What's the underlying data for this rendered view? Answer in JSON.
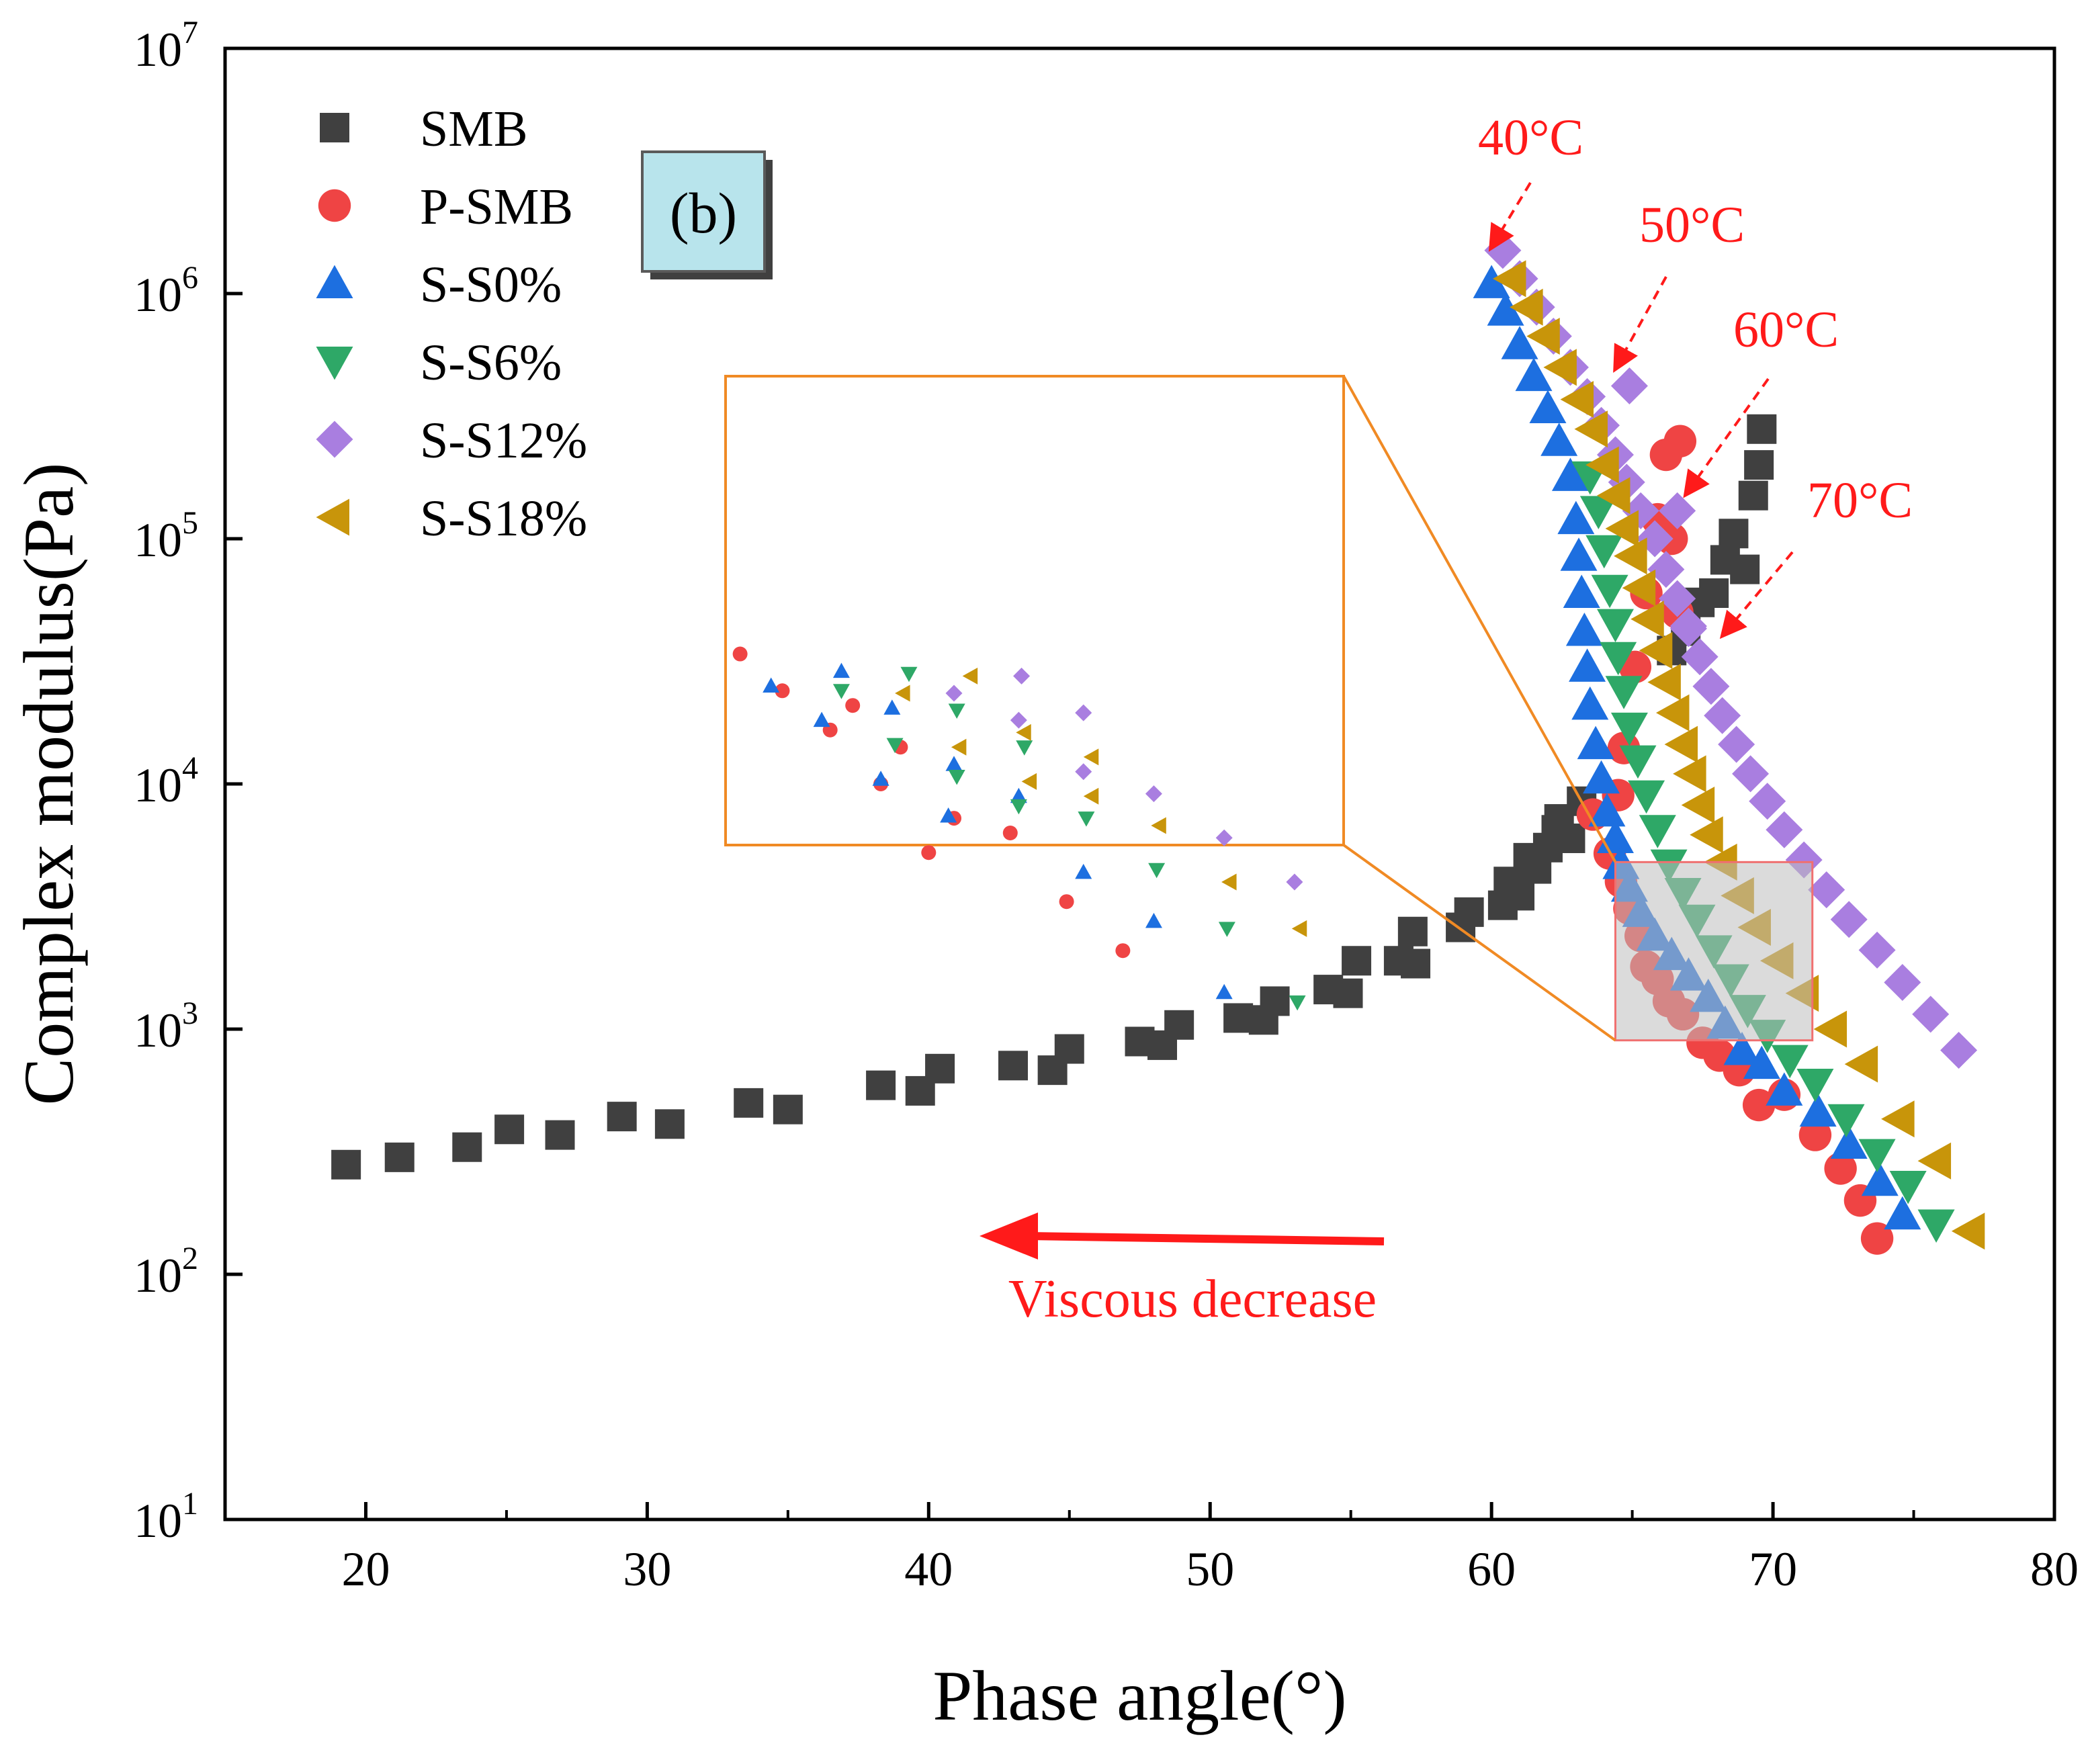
{
  "chart_data": {
    "type": "scatter",
    "title": "",
    "xlabel": "Phase angle(°)",
    "ylabel": "Complex modulus(Pa)",
    "xlim": [
      15,
      80
    ],
    "ylim": [
      10,
      10000000
    ],
    "yscale": "log",
    "x_ticks": [
      20,
      30,
      40,
      50,
      60,
      70,
      80
    ],
    "y_ticks": [
      {
        "value": 10,
        "base": "10",
        "exp": "1"
      },
      {
        "value": 100,
        "base": "10",
        "exp": "2"
      },
      {
        "value": 1000,
        "base": "10",
        "exp": "3"
      },
      {
        "value": 10000,
        "base": "10",
        "exp": "4"
      },
      {
        "value": 100000,
        "base": "10",
        "exp": "5"
      },
      {
        "value": 1000000,
        "base": "10",
        "exp": "6"
      },
      {
        "value": 10000000,
        "base": "10",
        "exp": "7"
      }
    ],
    "panel_label": "(b)",
    "legend_position": "top-left",
    "series": [
      {
        "name": "SMB",
        "marker": "square",
        "color": "#404040",
        "x": [
          19.3,
          21.2,
          23.6,
          25.1,
          26.9,
          29.1,
          30.8,
          33.6,
          35.0,
          38.3,
          39.7,
          40.4,
          43.0,
          44.4,
          45.0,
          47.5,
          48.3,
          48.9,
          51.0,
          51.9,
          52.3,
          54.2,
          54.9,
          55.2,
          56.7,
          57.3,
          57.2,
          58.9,
          59.2,
          60.4,
          60.6,
          61.0,
          61.3,
          61.6,
          62.0,
          62.3,
          62.4,
          62.8,
          63.2,
          66.4,
          66.9,
          67.4,
          67.9,
          68.3,
          68.6,
          69.0,
          69.3,
          69.5,
          69.6
        ],
        "y": [
          280,
          300,
          330,
          390,
          370,
          440,
          410,
          500,
          470,
          590,
          560,
          690,
          710,
          680,
          830,
          890,
          860,
          1040,
          1110,
          1090,
          1300,
          1450,
          1400,
          1900,
          1900,
          1850,
          2500,
          2600,
          3000,
          3200,
          4000,
          3500,
          5000,
          4500,
          5500,
          6500,
          7200,
          6000,
          8500,
          35000,
          42000,
          55000,
          60000,
          82000,
          105000,
          75000,
          150000,
          200000,
          280000
        ]
      },
      {
        "name": "P-SMB",
        "marker": "circle",
        "color": "#ef4444",
        "x": [
          63.6,
          64.2,
          64.6,
          64.9,
          65.3,
          65.5,
          65.9,
          66.3,
          66.8,
          67.5,
          68.1,
          68.8,
          69.5,
          70.4,
          71.5,
          72.4,
          73.1,
          73.7,
          64.5,
          64.7,
          65.1,
          65.5,
          65.9,
          66.2,
          66.4,
          66.6,
          66.7
        ],
        "y": [
          7500,
          5200,
          4000,
          3100,
          2400,
          1800,
          1600,
          1300,
          1150,
          880,
          780,
          680,
          490,
          540,
          370,
          270,
          200,
          140,
          9000,
          14000,
          30000,
          60000,
          120000,
          220000,
          100000,
          50000,
          250000
        ]
      },
      {
        "name": "S-S0%",
        "marker": "triangle-up",
        "color": "#1d6fe0",
        "x": [
          60.0,
          60.5,
          61.0,
          61.5,
          62.0,
          62.4,
          62.8,
          63.0,
          63.1,
          63.2,
          63.3,
          63.4,
          63.5,
          63.7,
          63.9,
          64.1,
          64.4,
          64.6,
          64.9,
          65.3,
          65.8,
          66.4,
          67.0,
          67.7,
          68.3,
          68.9,
          69.6,
          70.4,
          71.6,
          72.7,
          73.8,
          74.6
        ],
        "y": [
          1100000,
          850000,
          620000,
          460000,
          340000,
          250000,
          180000,
          120000,
          85000,
          60000,
          42000,
          30000,
          21000,
          14500,
          10500,
          7700,
          6000,
          4700,
          3800,
          3000,
          2400,
          2000,
          1650,
          1350,
          1050,
          820,
          720,
          560,
          460,
          340,
          240,
          175
        ]
      },
      {
        "name": "S-S6%",
        "marker": "triangle-down",
        "color": "#2ea867",
        "x": [
          63.5,
          63.8,
          64.0,
          64.2,
          64.4,
          64.5,
          64.7,
          64.9,
          65.2,
          65.5,
          65.9,
          66.3,
          66.8,
          67.3,
          67.9,
          68.5,
          69.1,
          69.8,
          70.6,
          71.5,
          72.6,
          73.7,
          74.8,
          75.8
        ],
        "y": [
          180000,
          130000,
          90000,
          62000,
          45000,
          33000,
          24000,
          17000,
          12500,
          9000,
          6500,
          4700,
          3600,
          2800,
          2100,
          1600,
          1200,
          950,
          750,
          600,
          430,
          310,
          230,
          160
        ]
      },
      {
        "name": "S-S12%",
        "marker": "diamond",
        "color": "#a97ee0",
        "x": [
          60.4,
          61.0,
          61.6,
          62.2,
          62.8,
          63.4,
          63.9,
          64.4,
          64.8,
          65.3,
          65.8,
          66.2,
          66.6,
          67.0,
          67.4,
          67.8,
          68.2,
          68.7,
          69.2,
          69.8,
          70.4,
          71.1,
          71.9,
          72.7,
          73.7,
          74.6,
          75.6,
          76.6,
          64.9,
          66.6,
          67.0
        ],
        "y": [
          1500000,
          1150000,
          880000,
          670000,
          500000,
          380000,
          290000,
          220000,
          170000,
          130000,
          100000,
          75000,
          57000,
          43000,
          33000,
          25000,
          19000,
          14500,
          11000,
          8500,
          6500,
          4900,
          3700,
          2800,
          2100,
          1550,
          1150,
          820,
          420000,
          130000,
          44000
        ]
      },
      {
        "name": "S-S18%",
        "marker": "triangle-left",
        "color": "#c8950a",
        "x": [
          60.7,
          61.3,
          61.9,
          62.5,
          63.1,
          63.6,
          64.0,
          64.4,
          64.7,
          65.0,
          65.3,
          65.6,
          65.9,
          66.2,
          66.5,
          66.8,
          67.1,
          67.4,
          67.7,
          68.2,
          68.8,
          69.4,
          70.2,
          71.1,
          72.1,
          73.2,
          74.5,
          75.8,
          77.0
        ],
        "y": [
          1150000,
          880000,
          670000,
          500000,
          370000,
          280000,
          200000,
          150000,
          110000,
          85000,
          63000,
          47000,
          35000,
          26000,
          19500,
          14500,
          11000,
          8200,
          6200,
          4800,
          3500,
          2600,
          1900,
          1400,
          1000,
          720,
          430,
          290,
          150
        ]
      }
    ],
    "annotations": [
      {
        "text": "40°C",
        "color": "#ff1a1a"
      },
      {
        "text": "50°C",
        "color": "#ff1a1a"
      },
      {
        "text": "60°C",
        "color": "#ff1a1a"
      },
      {
        "text": "70°C",
        "color": "#ff1a1a"
      },
      {
        "text": "Viscous decrease",
        "color": "#ff1a1a"
      }
    ],
    "inset": {
      "description_zoom_range_x": [
        64.4,
        71.4
      ],
      "description_zoom_range_y": [
        900,
        4800
      ],
      "points": [
        {
          "series": "P-SMB",
          "x": [
            33.3,
            34.8,
            36.5,
            37.3,
            38.3,
            39.0,
            40.0,
            40.9,
            42.9,
            44.9,
            46.9
          ],
          "y": [
            4.53,
            4.38,
            4.22,
            4.32,
            4.0,
            4.15,
            3.72,
            3.86,
            3.8,
            3.52,
            3.32
          ]
        },
        {
          "series": "S-S0%",
          "x": [
            34.4,
            36.2,
            36.9,
            38.3,
            38.7,
            40.7,
            40.9,
            43.2,
            45.5,
            48.0,
            50.5
          ],
          "y": [
            4.4,
            4.26,
            4.46,
            4.02,
            4.31,
            3.87,
            4.08,
            3.95,
            3.64,
            3.44,
            3.15
          ]
        },
        {
          "series": "S-S6%",
          "x": [
            36.9,
            38.8,
            39.3,
            41.0,
            41.0,
            43.2,
            43.4,
            45.6,
            48.1,
            50.6,
            53.1
          ],
          "y": [
            4.38,
            4.16,
            4.45,
            4.3,
            4.03,
            3.91,
            4.15,
            3.86,
            3.65,
            3.41,
            3.11
          ]
        },
        {
          "series": "S-S12%",
          "x": [
            40.9,
            43.2,
            43.3,
            45.5,
            45.5,
            48.0,
            50.5,
            53.0
          ],
          "y": [
            4.37,
            4.26,
            4.44,
            4.29,
            4.05,
            3.96,
            3.78,
            3.6
          ]
        },
        {
          "series": "S-S18%",
          "x": [
            39.1,
            41.1,
            41.5,
            43.4,
            43.6,
            45.8,
            45.8,
            48.2,
            50.7,
            53.2
          ],
          "y": [
            4.37,
            4.15,
            4.44,
            4.21,
            4.01,
            4.11,
            3.95,
            3.83,
            3.6,
            3.41
          ]
        }
      ]
    }
  }
}
